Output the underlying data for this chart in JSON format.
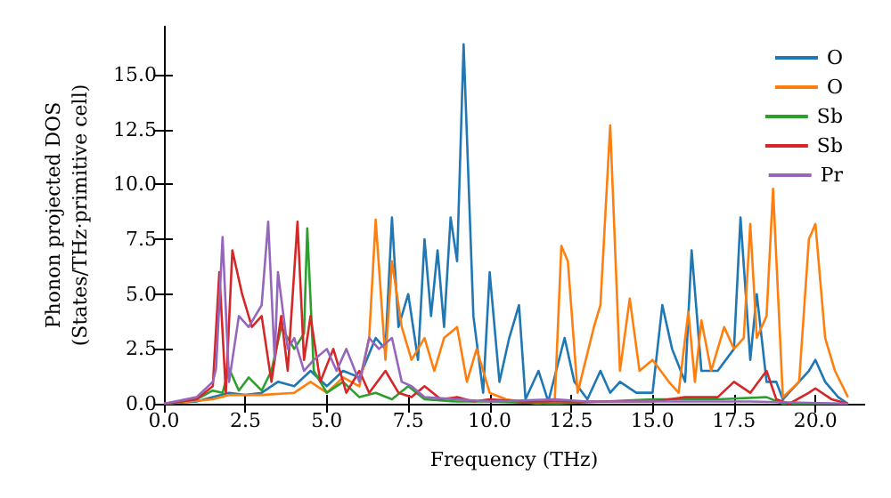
{
  "chart_data": {
    "type": "line",
    "xlabel": "Frequency (THz)",
    "ylabel": "Phonon projected DOS\n(States/THz·primitive cell)",
    "xlim": [
      0,
      21.5
    ],
    "ylim": [
      0,
      17.2
    ],
    "xticks": [
      {
        "value": 0,
        "label": "0.0"
      },
      {
        "value": 2.5,
        "label": "2.5"
      },
      {
        "value": 5,
        "label": "5.0"
      },
      {
        "value": 7.5,
        "label": "7.5"
      },
      {
        "value": 10,
        "label": "10.0"
      },
      {
        "value": 12.5,
        "label": "12.5"
      },
      {
        "value": 15,
        "label": "15.0"
      },
      {
        "value": 17.5,
        "label": "17.5"
      },
      {
        "value": 20,
        "label": "20.0"
      }
    ],
    "yticks": [
      {
        "value": 0,
        "label": "0.0"
      },
      {
        "value": 2.5,
        "label": "2.5"
      },
      {
        "value": 5,
        "label": "5.0"
      },
      {
        "value": 7.5,
        "label": "7.5"
      },
      {
        "value": 10,
        "label": "10.0"
      },
      {
        "value": 12.5,
        "label": "12.5"
      },
      {
        "value": 15,
        "label": "15.0"
      }
    ],
    "grid": false,
    "legend": "top right",
    "marker": "none",
    "line_style": "solid",
    "series": [
      {
        "name": "O",
        "color": "#1f77b4",
        "x": [
          0,
          1,
          1.5,
          2,
          2.5,
          3,
          3.5,
          4,
          4.5,
          5,
          5.5,
          6,
          6.5,
          6.8,
          7.0,
          7.2,
          7.5,
          7.8,
          8.0,
          8.2,
          8.4,
          8.6,
          8.8,
          9.0,
          9.2,
          9.5,
          9.8,
          10.0,
          10.3,
          10.6,
          10.9,
          11.1,
          11.5,
          11.8,
          12.3,
          12.6,
          13.0,
          13.4,
          13.7,
          14.0,
          14.5,
          15.0,
          15.3,
          15.6,
          16.0,
          16.2,
          16.5,
          17.0,
          17.5,
          17.7,
          18.0,
          18.2,
          18.5,
          18.8,
          19.0,
          19.8,
          20.0,
          20.3,
          20.7,
          21.0
        ],
        "values": [
          0,
          0.1,
          0.3,
          0.5,
          0.4,
          0.5,
          1.0,
          0.8,
          1.5,
          0.8,
          1.5,
          1.2,
          3.0,
          2.5,
          8.5,
          3.5,
          5.0,
          2.0,
          7.5,
          4.0,
          7.0,
          3.5,
          8.5,
          6.5,
          16.4,
          4.0,
          0.5,
          6.0,
          1.0,
          3.0,
          4.5,
          0.2,
          1.5,
          0.1,
          3.0,
          1.0,
          0.2,
          1.5,
          0.5,
          1.0,
          0.5,
          0.5,
          4.5,
          2.5,
          1.0,
          7.0,
          1.5,
          1.5,
          2.5,
          8.5,
          2.0,
          5.0,
          1.0,
          1.0,
          0.2,
          1.5,
          2.0,
          1.0,
          0.3,
          0
        ]
      },
      {
        "name": "O",
        "color": "#ff7f0e",
        "x": [
          0,
          1.5,
          2,
          3,
          4,
          4.5,
          5,
          5.5,
          6,
          6.3,
          6.5,
          6.8,
          7.0,
          7.3,
          7.6,
          8.0,
          8.3,
          8.6,
          9.0,
          9.3,
          9.6,
          10.0,
          10.5,
          11.0,
          11.5,
          12.0,
          12.2,
          12.4,
          12.7,
          13.2,
          13.4,
          13.7,
          14.0,
          14.3,
          14.6,
          15.0,
          15.5,
          15.8,
          16.1,
          16.3,
          16.5,
          16.8,
          17.2,
          17.5,
          17.8,
          18.0,
          18.2,
          18.5,
          18.7,
          19.0,
          19.5,
          19.8,
          20.0,
          20.3,
          20.6,
          21.0
        ],
        "values": [
          0,
          0.2,
          0.4,
          0.4,
          0.5,
          1.0,
          0.5,
          1.2,
          0.8,
          3.0,
          8.4,
          2.0,
          6.5,
          3.5,
          2.0,
          3.0,
          1.5,
          3.0,
          3.5,
          1.0,
          2.5,
          0.5,
          0.2,
          0.1,
          0,
          0.2,
          7.2,
          6.5,
          0.5,
          3.5,
          4.5,
          12.7,
          1.5,
          4.8,
          1.5,
          2.0,
          1.0,
          0.5,
          4.2,
          1.0,
          3.8,
          1.5,
          3.5,
          2.5,
          3.0,
          8.2,
          3.0,
          4.0,
          9.8,
          0.3,
          1.0,
          7.5,
          8.2,
          3.0,
          1.5,
          0.3
        ]
      },
      {
        "name": "Sb",
        "color": "#2ca02c",
        "x": [
          0,
          1,
          1.5,
          1.8,
          2.0,
          2.3,
          2.6,
          3.0,
          3.3,
          3.6,
          3.8,
          4.0,
          4.3,
          4.4,
          4.6,
          5.0,
          5.5,
          6.0,
          6.5,
          7.0,
          7.5,
          8.0,
          9.0,
          10,
          12,
          15,
          17,
          18.5,
          19,
          21
        ],
        "values": [
          0,
          0.2,
          0.6,
          0.5,
          1.6,
          0.6,
          1.2,
          0.6,
          1.5,
          3.5,
          3.0,
          2.5,
          3.2,
          8.0,
          1.5,
          0.5,
          1.0,
          0.3,
          0.5,
          0.2,
          0.8,
          0.2,
          0.1,
          0.1,
          0,
          0.2,
          0.2,
          0.3,
          0,
          0
        ]
      },
      {
        "name": "Sb",
        "color": "#d62728",
        "x": [
          0,
          1,
          1.5,
          1.7,
          1.9,
          2.1,
          2.4,
          2.7,
          3.0,
          3.3,
          3.6,
          3.8,
          4.1,
          4.3,
          4.5,
          4.8,
          5.2,
          5.6,
          6.0,
          6.3,
          6.8,
          7.2,
          7.6,
          8.0,
          8.5,
          9.0,
          9.5,
          10,
          11,
          12,
          15,
          16,
          17,
          17.5,
          18.0,
          18.5,
          18.8,
          19.2,
          19.8,
          20.0,
          20.5,
          21
        ],
        "values": [
          0,
          0.2,
          0.8,
          6.0,
          0.5,
          7.0,
          5.0,
          3.5,
          4.0,
          1.0,
          4.0,
          1.5,
          8.3,
          2.0,
          4.0,
          1.0,
          2.5,
          0.5,
          1.5,
          0.5,
          1.5,
          0.5,
          0.3,
          0.8,
          0.2,
          0.3,
          0.1,
          0.2,
          0.1,
          0.1,
          0.1,
          0.3,
          0.3,
          1.0,
          0.5,
          1.5,
          0.2,
          0,
          0.5,
          0.7,
          0.2,
          0
        ]
      },
      {
        "name": "Pr",
        "color": "#9467bd",
        "x": [
          0,
          1,
          1.5,
          1.6,
          1.8,
          2.0,
          2.3,
          2.6,
          3.0,
          3.2,
          3.4,
          3.5,
          3.8,
          4.0,
          4.3,
          4.6,
          5.0,
          5.3,
          5.6,
          6.0,
          6.3,
          6.6,
          7.0,
          7.3,
          7.6,
          8.0,
          9.0,
          10,
          12,
          13,
          15,
          18,
          21
        ],
        "values": [
          0,
          0.3,
          1.0,
          1.6,
          7.6,
          1.0,
          4.0,
          3.5,
          4.5,
          8.3,
          2.0,
          6.0,
          2.5,
          3.0,
          1.5,
          2.0,
          2.5,
          1.5,
          2.5,
          1.0,
          3.0,
          2.5,
          3.0,
          1.0,
          0.8,
          0.3,
          0.2,
          0.1,
          0.2,
          0.1,
          0.1,
          0.1,
          0
        ]
      }
    ]
  }
}
